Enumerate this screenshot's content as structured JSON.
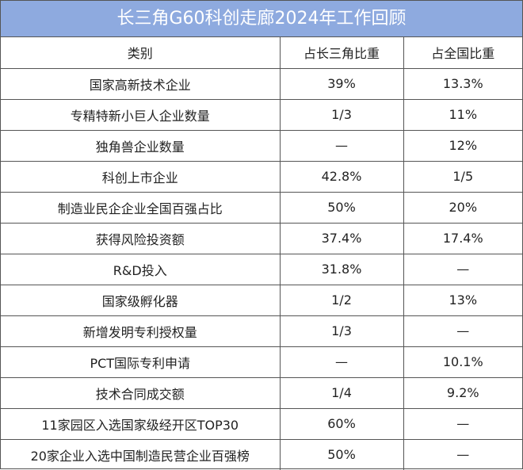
{
  "table": {
    "title": "长三角G60科创走廊2024年工作回顾",
    "header": [
      "类别",
      "占长三角比重",
      "占全国比重"
    ],
    "rows": [
      [
        "国家高新技术企业",
        "39%",
        "13.3%"
      ],
      [
        "专精特新小巨人企业数量",
        "1/3",
        "11%"
      ],
      [
        "独角兽企业数量",
        "—",
        "12%"
      ],
      [
        "科创上市企业",
        "42.8%",
        "1/5"
      ],
      [
        "制造业民企企业全国百强占比",
        "50%",
        "20%"
      ],
      [
        "获得风险投资额",
        "37.4%",
        "17.4%"
      ],
      [
        "R&D投入",
        "31.8%",
        "—"
      ],
      [
        "国家级孵化器",
        "1/2",
        "13%"
      ],
      [
        "新增发明专利授权量",
        "1/3",
        "—"
      ],
      [
        "PCT国际专利申请",
        "—",
        "10.1%"
      ],
      [
        "技术合同成交额",
        "1/4",
        "9.2%"
      ],
      [
        "11家园区入选国家级经开区TOP30",
        "60%",
        "—"
      ],
      [
        "20家企业入选中国制造民营企业百强榜",
        "50%",
        "—"
      ]
    ]
  }
}
